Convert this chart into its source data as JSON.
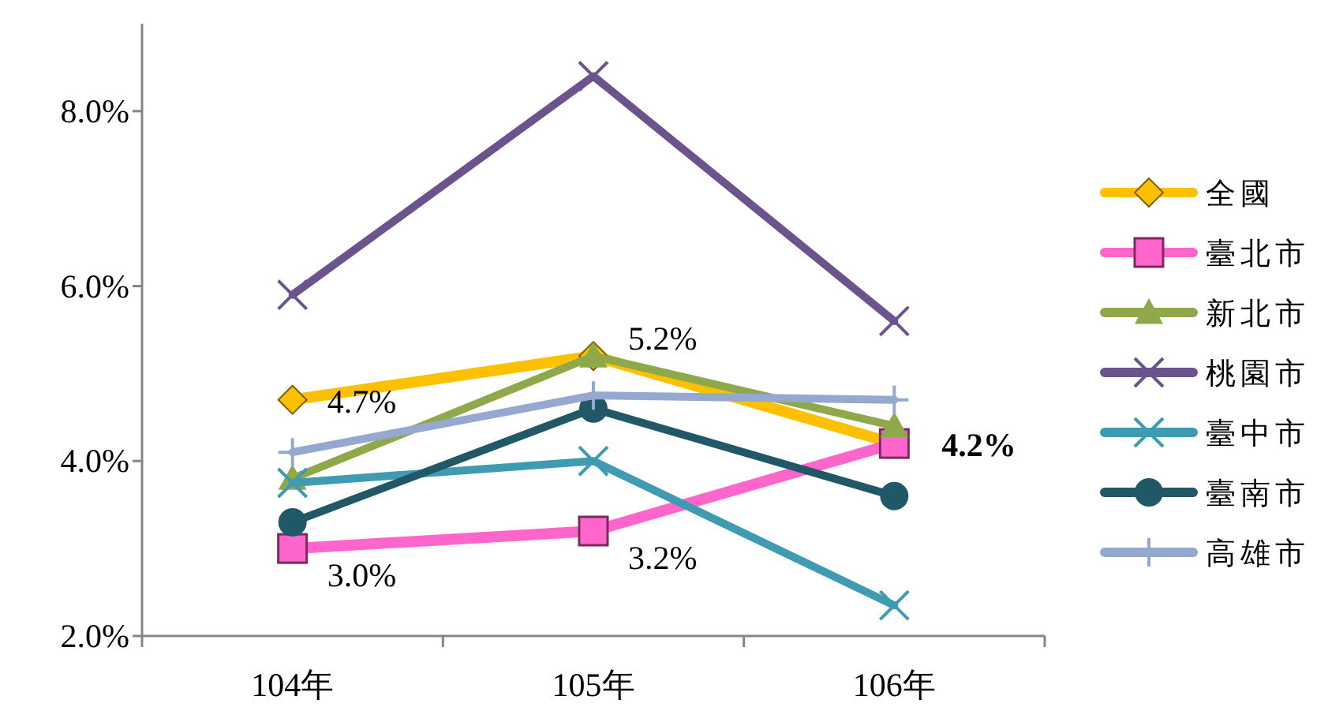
{
  "chart_data": {
    "type": "line",
    "categories": [
      "104年",
      "105年",
      "106年"
    ],
    "ylim": [
      2,
      9
    ],
    "yticks": [
      {
        "value": 2,
        "label": "2.0%"
      },
      {
        "value": 4,
        "label": "4.0%"
      },
      {
        "value": 6,
        "label": "6.0%"
      },
      {
        "value": 8,
        "label": "8.0%"
      }
    ],
    "grid": false,
    "legend": "right",
    "series": [
      {
        "name": "全國",
        "color": "#ffc000",
        "marker": "diamond",
        "values": [
          4.7,
          5.2,
          4.2
        ],
        "value_labels": [
          "4.7%",
          "5.2%",
          null
        ]
      },
      {
        "name": "臺北市",
        "color": "#ff66cc",
        "marker": "square",
        "values": [
          3.0,
          3.2,
          4.2
        ],
        "value_labels": [
          "3.0%",
          "3.2%",
          "4.2%"
        ]
      },
      {
        "name": "新北市",
        "color": "#8ea84a",
        "marker": "triangle",
        "values": [
          3.8,
          5.2,
          4.4
        ]
      },
      {
        "name": "桃園市",
        "color": "#6b548e",
        "marker": "cross",
        "values": [
          5.9,
          8.4,
          5.6
        ]
      },
      {
        "name": "臺中市",
        "color": "#3f9bb2",
        "marker": "cross",
        "values": [
          3.75,
          4.0,
          2.35
        ]
      },
      {
        "name": "臺南市",
        "color": "#215868",
        "marker": "circle",
        "values": [
          3.3,
          4.6,
          3.6
        ]
      },
      {
        "name": "高雄市",
        "color": "#94a8d0",
        "marker": "plus",
        "values": [
          4.1,
          4.75,
          4.7
        ]
      }
    ]
  }
}
